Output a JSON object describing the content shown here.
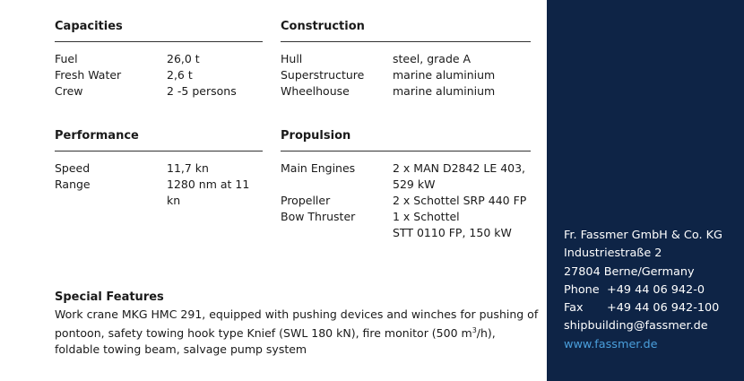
{
  "capacities": {
    "title": "Capacities",
    "rows": [
      {
        "label": "Fuel",
        "value": [
          "26,0 t"
        ]
      },
      {
        "label": "Fresh Water",
        "value": [
          "2,6 t"
        ]
      },
      {
        "label": "Crew",
        "value": [
          "2 -5 persons"
        ]
      }
    ]
  },
  "construction": {
    "title": "Construction",
    "rows": [
      {
        "label": "Hull",
        "value": [
          "steel, grade A"
        ]
      },
      {
        "label": "Superstructure",
        "value": [
          "marine aluminium"
        ]
      },
      {
        "label": "Wheelhouse",
        "value": [
          "marine aluminium"
        ]
      }
    ]
  },
  "performance": {
    "title": "Performance",
    "rows": [
      {
        "label": "Speed",
        "value": [
          "11,7 kn"
        ]
      },
      {
        "label": "Range",
        "value": [
          "1280 nm at 11 kn"
        ]
      }
    ]
  },
  "propulsion": {
    "title": "Propulsion",
    "rows": [
      {
        "label": "Main Engines",
        "value": [
          "2 x MAN D2842 LE 403,",
          "529 kW"
        ]
      },
      {
        "label": "Propeller",
        "value": [
          "2 x Schottel SRP 440 FP"
        ]
      },
      {
        "label": "Bow Thruster",
        "value": [
          "1 x Schottel",
          "STT 0110 FP, 150 kW"
        ]
      }
    ]
  },
  "special": {
    "title": "Special Features",
    "text_before_sup": "Work crane MKG HMC 291, equipped with pushing devices and winches for pushing of pontoon, safety towing hook type Knief (SWL 180 kN), fire monitor (500 m",
    "sup": "3",
    "text_after_sup": "/h), foldable towing beam, salvage pump system"
  },
  "contact": {
    "company": "Fr. Fassmer GmbH & Co. KG",
    "street": "Industriestraße 2",
    "city": "27804 Berne/Germany",
    "phone_label": "Phone",
    "phone": "+49 44 06 942-0",
    "fax_label": "Fax",
    "fax": "+49 44 06 942-100",
    "email": "shipbuilding@fassmer.de",
    "website": "www.fassmer.de"
  },
  "colors": {
    "panel": "#0e2446",
    "link": "#4a9fdc"
  }
}
